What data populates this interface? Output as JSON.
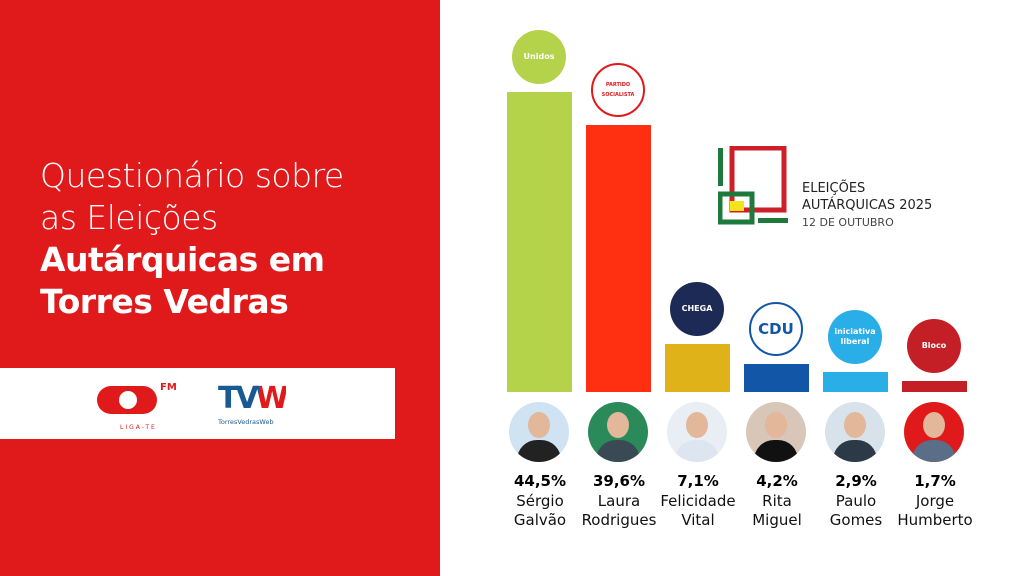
{
  "title": {
    "line1": "Questionário sobre",
    "line2": "as Eleições",
    "bold1": "Autárquicas em",
    "bold2": "Torres Vedras"
  },
  "partners": {
    "on_fm": "FM",
    "on_tagline": "LIGA-TE",
    "tvw_name": "TorresVedrasWeb",
    "tvw_mark": "TVW"
  },
  "event": {
    "line1": "ELEIÇÕES",
    "line2": "AUTÁRQUICAS 2025",
    "line3": "12 DE OUTUBRO"
  },
  "chart_data": {
    "type": "bar",
    "categories": [
      "Sérgio Galvão",
      "Laura Rodrigues",
      "Felicidade Vital",
      "Rita Miguel",
      "Paulo Gomes",
      "Jorge Humberto"
    ],
    "values": [
      44.5,
      39.6,
      7.1,
      4.2,
      2.9,
      1.7
    ],
    "labels": [
      "44,5%",
      "39,6%",
      "7,1%",
      "4,2%",
      "2,9%",
      "1,7%"
    ],
    "names": [
      [
        "Sérgio",
        "Galvão"
      ],
      [
        "Laura",
        "Rodrigues"
      ],
      [
        "Felicidade",
        "Vital"
      ],
      [
        "Rita",
        "Miguel"
      ],
      [
        "Paulo",
        "Gomes"
      ],
      [
        "Jorge",
        "Humberto"
      ]
    ],
    "parties": [
      "Unidos",
      "PARTIDO SOCIALISTA",
      "CHEGA",
      "CDU",
      "iniciativa liberal",
      "Bloco"
    ],
    "colors": [
      "#b5d24b",
      "#ff3012",
      "#e0b21a",
      "#1256a8",
      "#2aaee8",
      "#c41f27"
    ],
    "ylim": [
      0,
      44.5
    ],
    "grid": false
  }
}
